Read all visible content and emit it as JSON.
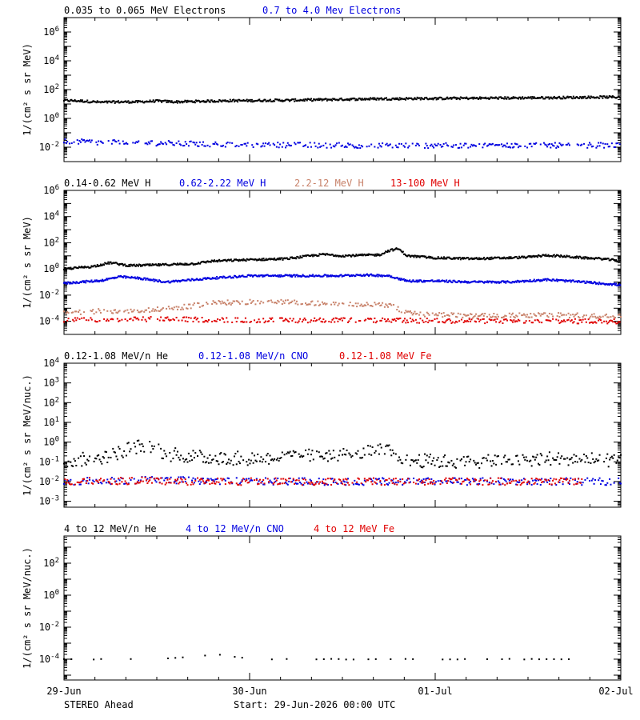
{
  "footer": {
    "spacecraft": "STEREO Ahead",
    "start": "Start: 29-Jun-2026 00:00 UTC"
  },
  "colors": {
    "black": "#000000",
    "blue": "#0000e0",
    "tan": "#c8826a",
    "red": "#e00000"
  },
  "chart_data": [
    {
      "type": "scatter",
      "ylabel": "1/(cm² s sr MeV)",
      "yscale": "log",
      "ylim": [
        0.001,
        10000000
      ],
      "yticks": [
        0.01,
        1,
        100,
        10000,
        1000000
      ],
      "ytick_labels": [
        "10^-2",
        "10^0",
        "10^2",
        "10^4",
        "10^6"
      ],
      "series": [
        {
          "name": "0.035 to 0.065 MeV Electrons",
          "color": "#000000",
          "style": "dense",
          "points": [
            [
              0,
              18
            ],
            [
              0.1,
              16
            ],
            [
              0.2,
              13
            ],
            [
              0.3,
              14
            ],
            [
              0.4,
              14
            ],
            [
              0.5,
              16
            ],
            [
              0.6,
              14
            ],
            [
              0.7,
              15
            ],
            [
              0.8,
              16
            ],
            [
              0.9,
              17
            ],
            [
              1.0,
              17
            ],
            [
              1.1,
              18
            ],
            [
              1.2,
              18
            ],
            [
              1.3,
              19
            ],
            [
              1.4,
              20
            ],
            [
              1.5,
              21
            ],
            [
              1.6,
              22
            ],
            [
              1.7,
              23
            ],
            [
              1.8,
              23
            ],
            [
              1.9,
              24
            ],
            [
              2.0,
              24
            ],
            [
              2.1,
              25
            ],
            [
              2.2,
              25
            ],
            [
              2.3,
              26
            ],
            [
              2.4,
              26
            ],
            [
              2.5,
              27
            ],
            [
              2.6,
              27
            ],
            [
              2.7,
              28
            ],
            [
              2.8,
              29
            ],
            [
              2.9,
              30
            ],
            [
              3.0,
              30
            ]
          ]
        },
        {
          "name": "0.7 to 4.0 Mev Electrons",
          "color": "#0000e0",
          "style": "sparse",
          "points": [
            [
              0,
              0.025
            ],
            [
              0.2,
              0.022
            ],
            [
              0.4,
              0.02
            ],
            [
              0.6,
              0.018
            ],
            [
              0.8,
              0.016
            ],
            [
              1.0,
              0.015
            ],
            [
              1.3,
              0.014
            ],
            [
              1.6,
              0.013
            ],
            [
              2.0,
              0.013
            ],
            [
              2.5,
              0.013
            ],
            [
              3.0,
              0.014
            ]
          ]
        }
      ]
    },
    {
      "type": "scatter",
      "ylabel": "1/(cm² s sr MeV)",
      "yscale": "log",
      "ylim": [
        1e-05,
        1000000
      ],
      "yticks": [
        0.0001,
        0.01,
        1,
        100,
        10000,
        1000000
      ],
      "ytick_labels": [
        "10^-4",
        "10^-2",
        "10^0",
        "10^2",
        "10^4",
        "10^6"
      ],
      "series": [
        {
          "name": "0.14-0.62 MeV H",
          "color": "#000000",
          "style": "dense",
          "points": [
            [
              0,
              1.0
            ],
            [
              0.15,
              1.5
            ],
            [
              0.25,
              3.0
            ],
            [
              0.35,
              1.8
            ],
            [
              0.5,
              2.0
            ],
            [
              0.7,
              2.5
            ],
            [
              0.8,
              4.0
            ],
            [
              1.0,
              5.0
            ],
            [
              1.2,
              6.0
            ],
            [
              1.3,
              9.0
            ],
            [
              1.4,
              13
            ],
            [
              1.5,
              10
            ],
            [
              1.6,
              11
            ],
            [
              1.7,
              12
            ],
            [
              1.75,
              25
            ],
            [
              1.8,
              35
            ],
            [
              1.85,
              10
            ],
            [
              2.0,
              7
            ],
            [
              2.2,
              6
            ],
            [
              2.4,
              7
            ],
            [
              2.5,
              8
            ],
            [
              2.6,
              11
            ],
            [
              2.7,
              9
            ],
            [
              2.8,
              7
            ],
            [
              2.9,
              6
            ],
            [
              3.0,
              4
            ]
          ]
        },
        {
          "name": "0.62-2.22 MeV H",
          "color": "#0000e0",
          "style": "dense",
          "points": [
            [
              0,
              0.08
            ],
            [
              0.2,
              0.13
            ],
            [
              0.3,
              0.25
            ],
            [
              0.4,
              0.2
            ],
            [
              0.55,
              0.1
            ],
            [
              0.8,
              0.2
            ],
            [
              1.0,
              0.3
            ],
            [
              1.3,
              0.3
            ],
            [
              1.5,
              0.3
            ],
            [
              1.6,
              0.35
            ],
            [
              1.75,
              0.3
            ],
            [
              1.85,
              0.12
            ],
            [
              2.0,
              0.12
            ],
            [
              2.2,
              0.1
            ],
            [
              2.4,
              0.1
            ],
            [
              2.6,
              0.15
            ],
            [
              2.8,
              0.1
            ],
            [
              3.0,
              0.06
            ]
          ]
        },
        {
          "name": "2.2-12 MeV H",
          "color": "#c8826a",
          "style": "sparse",
          "points": [
            [
              0,
              0.0004
            ],
            [
              0.2,
              0.0006
            ],
            [
              0.4,
              0.0006
            ],
            [
              0.6,
              0.001
            ],
            [
              0.8,
              0.0025
            ],
            [
              1.0,
              0.003
            ],
            [
              1.2,
              0.003
            ],
            [
              1.5,
              0.002
            ],
            [
              1.75,
              0.0018
            ],
            [
              1.85,
              0.0004
            ],
            [
              2.2,
              0.00025
            ],
            [
              2.6,
              0.0003
            ],
            [
              3.0,
              0.00025
            ]
          ]
        },
        {
          "name": "13-100 MeV H",
          "color": "#e00000",
          "style": "sparse",
          "points": [
            [
              0,
              0.00012
            ],
            [
              0.5,
              0.00015
            ],
            [
              1.0,
              0.00012
            ],
            [
              1.5,
              0.00012
            ],
            [
              2.0,
              0.00011
            ],
            [
              2.5,
              0.0001
            ],
            [
              3.0,
              0.0001
            ]
          ]
        }
      ]
    },
    {
      "type": "scatter",
      "ylabel": "1/(cm² s sr MeV/nuc.)",
      "yscale": "log",
      "ylim": [
        0.0005,
        10000
      ],
      "yticks": [
        0.001,
        0.01,
        0.1,
        1,
        10,
        100,
        1000,
        10000
      ],
      "ytick_labels": [
        "10^-3",
        "10^-2",
        "10^-1",
        "10^0",
        "10^1",
        "10^2",
        "10^3",
        "10^4"
      ],
      "series": [
        {
          "name": "0.12-1.08 MeV/n He",
          "color": "#000000",
          "style": "noisy",
          "points": [
            [
              0,
              0.1
            ],
            [
              0.25,
              0.2
            ],
            [
              0.35,
              0.5
            ],
            [
              0.45,
              0.7
            ],
            [
              0.55,
              0.25
            ],
            [
              0.8,
              0.15
            ],
            [
              1.0,
              0.15
            ],
            [
              1.3,
              0.2
            ],
            [
              1.55,
              0.25
            ],
            [
              1.75,
              0.4
            ],
            [
              1.85,
              0.12
            ],
            [
              2.1,
              0.1
            ],
            [
              2.3,
              0.1
            ],
            [
              2.6,
              0.15
            ],
            [
              2.8,
              0.15
            ],
            [
              3.0,
              0.1
            ]
          ]
        },
        {
          "name": "0.12-1.08 MeV/n CNO",
          "color": "#0000e0",
          "style": "sparse",
          "points": [
            [
              0,
              0.01
            ],
            [
              0.5,
              0.012
            ],
            [
              1.0,
              0.01
            ],
            [
              1.5,
              0.01
            ],
            [
              2.0,
              0.01
            ],
            [
              2.5,
              0.01
            ],
            [
              3.0,
              0.01
            ]
          ]
        },
        {
          "name": "0.12-1.08 MeV Fe",
          "color": "#e00000",
          "style": "sparse",
          "points": [
            [
              0,
              0.01
            ],
            [
              0.45,
              0.011
            ],
            [
              0.6,
              0.01
            ],
            [
              1.5,
              0.01
            ],
            [
              2.0,
              0.01
            ],
            [
              2.8,
              0.01
            ]
          ]
        }
      ]
    },
    {
      "type": "scatter",
      "ylabel": "1/(cm² s sr MeV/nuc.)",
      "yscale": "log",
      "ylim": [
        5e-06,
        5000
      ],
      "yticks": [
        0.0001,
        0.01,
        1,
        100
      ],
      "ytick_labels": [
        "10^-4",
        "10^-2",
        "10^0",
        "10^2"
      ],
      "series": [
        {
          "name": "4 to 12 MeV/n He",
          "color": "#000000",
          "style": "very-sparse",
          "points": [
            [
              0,
              0.0001
            ],
            [
              0.5,
              0.0001
            ],
            [
              0.85,
              0.0002
            ],
            [
              1.0,
              0.0001
            ],
            [
              1.5,
              0.0001
            ],
            [
              2.0,
              0.0001
            ],
            [
              2.5,
              0.0001
            ],
            [
              2.75,
              0.0001
            ]
          ]
        },
        {
          "name": "4 to 12 MeV/n CNO",
          "color": "#0000e0",
          "style": "none",
          "points": []
        },
        {
          "name": "4 to 12 MeV Fe",
          "color": "#e00000",
          "style": "none",
          "points": []
        }
      ]
    }
  ],
  "xaxis": {
    "ticks": [
      0,
      1,
      2,
      3
    ],
    "tick_labels": [
      "29-Jun",
      "30-Jun",
      "01-Jul",
      "02-Jul"
    ],
    "minor_per_day": 6,
    "xlim": [
      0,
      3
    ]
  }
}
